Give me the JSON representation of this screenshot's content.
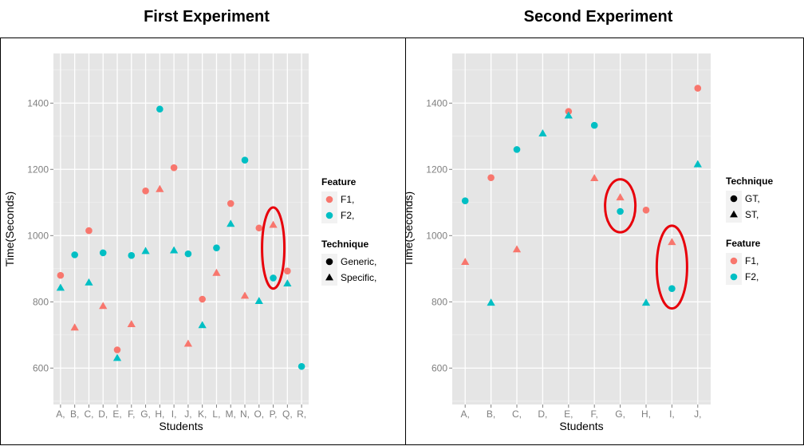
{
  "chart_data": [
    {
      "type": "scatter",
      "title": "First Experiment",
      "xlabel": "Students",
      "ylabel": "Time(Seconds)",
      "categories": [
        "A,",
        "B,",
        "C,",
        "D,",
        "E,",
        "F,",
        "G,",
        "H,",
        "I,",
        "J,",
        "K,",
        "L,",
        "M,",
        "N,",
        "O,",
        "P,",
        "Q,",
        "R,"
      ],
      "ylim": [
        490,
        1550
      ],
      "yticks": [
        600,
        800,
        1000,
        1200,
        1400
      ],
      "grid": true,
      "legend_position": "right",
      "legends": [
        {
          "title": "Feature",
          "kind": "color",
          "entries": [
            {
              "label": "F1,",
              "key": "F1"
            },
            {
              "label": "F2,",
              "key": "F2"
            }
          ]
        },
        {
          "title": "Technique",
          "kind": "shape",
          "entries": [
            {
              "label": "Generic,",
              "key": "circle"
            },
            {
              "label": "Specific,",
              "key": "triangle"
            }
          ]
        }
      ],
      "colors": {
        "F1": "#f8766d",
        "F2": "#00bfc4"
      },
      "shape_map": {
        "Generic": "circle",
        "Specific": "triangle"
      },
      "series": [
        {
          "name": "F1 Generic",
          "feature": "F1",
          "technique": "Generic",
          "points": [
            {
              "x": "A,",
              "y": 880
            },
            {
              "x": "C,",
              "y": 1015
            },
            {
              "x": "E,",
              "y": 655
            },
            {
              "x": "G,",
              "y": 1135
            },
            {
              "x": "I,",
              "y": 1205
            },
            {
              "x": "K,",
              "y": 808
            },
            {
              "x": "M,",
              "y": 1097
            },
            {
              "x": "O,",
              "y": 1023
            },
            {
              "x": "Q,",
              "y": 893
            }
          ]
        },
        {
          "name": "F1 Specific",
          "feature": "F1",
          "technique": "Specific",
          "points": [
            {
              "x": "B,",
              "y": 722
            },
            {
              "x": "D,",
              "y": 787
            },
            {
              "x": "F,",
              "y": 732
            },
            {
              "x": "H,",
              "y": 1140
            },
            {
              "x": "J,",
              "y": 673
            },
            {
              "x": "L,",
              "y": 887
            },
            {
              "x": "N,",
              "y": 818
            },
            {
              "x": "P,",
              "y": 1032
            }
          ]
        },
        {
          "name": "F2 Generic",
          "feature": "F2",
          "technique": "Generic",
          "points": [
            {
              "x": "B,",
              "y": 942
            },
            {
              "x": "D,",
              "y": 948
            },
            {
              "x": "F,",
              "y": 940
            },
            {
              "x": "H,",
              "y": 1382
            },
            {
              "x": "J,",
              "y": 945
            },
            {
              "x": "L,",
              "y": 963
            },
            {
              "x": "N,",
              "y": 1228
            },
            {
              "x": "P,",
              "y": 872
            },
            {
              "x": "R,",
              "y": 605
            }
          ]
        },
        {
          "name": "F2 Specific",
          "feature": "F2",
          "technique": "Specific",
          "points": [
            {
              "x": "A,",
              "y": 842
            },
            {
              "x": "C,",
              "y": 858
            },
            {
              "x": "E,",
              "y": 630
            },
            {
              "x": "G,",
              "y": 953
            },
            {
              "x": "I,",
              "y": 955
            },
            {
              "x": "K,",
              "y": 729
            },
            {
              "x": "M,",
              "y": 1035
            },
            {
              "x": "O,",
              "y": 802
            },
            {
              "x": "Q,",
              "y": 855
            }
          ]
        }
      ],
      "annotations": [
        {
          "type": "ellipse",
          "color": "#e8000b",
          "x": "P,",
          "y_center": 965,
          "y_extent": [
            840,
            1085
          ]
        }
      ]
    },
    {
      "type": "scatter",
      "title": "Second Experiment",
      "xlabel": "Students",
      "ylabel": "Time(Seconds)",
      "categories": [
        "A,",
        "B,",
        "C,",
        "D,",
        "E,",
        "F,",
        "G,",
        "H,",
        "I,",
        "J,"
      ],
      "ylim": [
        490,
        1550
      ],
      "yticks": [
        600,
        800,
        1000,
        1200,
        1400
      ],
      "grid": true,
      "legend_position": "right",
      "legends": [
        {
          "title": "Technique",
          "kind": "shape",
          "entries": [
            {
              "label": "GT,",
              "key": "circle"
            },
            {
              "label": "ST,",
              "key": "triangle"
            }
          ]
        },
        {
          "title": "Feature",
          "kind": "color",
          "entries": [
            {
              "label": "F1,",
              "key": "F1"
            },
            {
              "label": "F2,",
              "key": "F2"
            }
          ]
        }
      ],
      "colors": {
        "F1": "#f8766d",
        "F2": "#00bfc4"
      },
      "shape_map": {
        "GT": "circle",
        "ST": "triangle"
      },
      "series": [
        {
          "name": "F1 GT",
          "feature": "F1",
          "technique": "GT",
          "points": [
            {
              "x": "B,",
              "y": 1175
            },
            {
              "x": "E,",
              "y": 1375
            },
            {
              "x": "H,",
              "y": 1077
            },
            {
              "x": "J,",
              "y": 1445
            }
          ]
        },
        {
          "name": "F1 ST",
          "feature": "F1",
          "technique": "ST",
          "points": [
            {
              "x": "A,",
              "y": 920
            },
            {
              "x": "C,",
              "y": 958
            },
            {
              "x": "F,",
              "y": 1173
            },
            {
              "x": "G,",
              "y": 1115
            },
            {
              "x": "I,",
              "y": 980
            }
          ]
        },
        {
          "name": "F2 GT",
          "feature": "F2",
          "technique": "GT",
          "points": [
            {
              "x": "A,",
              "y": 1105
            },
            {
              "x": "C,",
              "y": 1260
            },
            {
              "x": "F,",
              "y": 1333
            },
            {
              "x": "G,",
              "y": 1073
            },
            {
              "x": "I,",
              "y": 840
            }
          ]
        },
        {
          "name": "F2 ST",
          "feature": "F2",
          "technique": "ST",
          "points": [
            {
              "x": "B,",
              "y": 797
            },
            {
              "x": "D,",
              "y": 1308
            },
            {
              "x": "E,",
              "y": 1362
            },
            {
              "x": "H,",
              "y": 797
            },
            {
              "x": "J,",
              "y": 1215
            }
          ]
        }
      ],
      "annotations": [
        {
          "type": "ellipse",
          "color": "#e8000b",
          "x": "G,",
          "y_center": 1090,
          "y_extent": [
            1010,
            1170
          ]
        },
        {
          "type": "ellipse",
          "color": "#e8000b",
          "x": "I,",
          "y_center": 905,
          "y_extent": [
            780,
            1030
          ]
        }
      ]
    }
  ]
}
